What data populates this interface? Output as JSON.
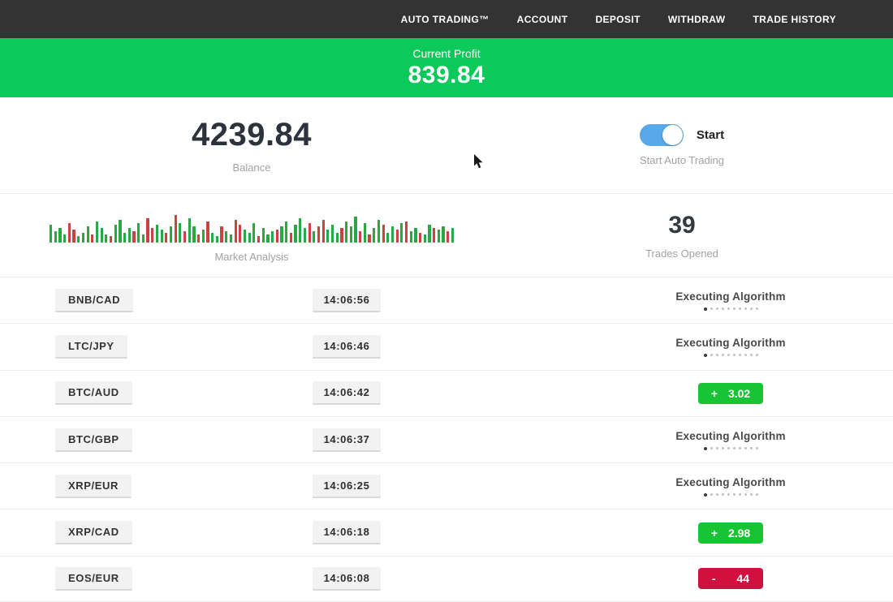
{
  "nav": {
    "items": [
      {
        "label": "AUTO TRADING™"
      },
      {
        "label": "ACCOUNT"
      },
      {
        "label": "DEPOSIT"
      },
      {
        "label": "WITHDRAW"
      },
      {
        "label": "TRADE HISTORY"
      }
    ]
  },
  "profit_banner": {
    "label": "Current Profit",
    "value": "839.84",
    "bg_color": "#0cc95c"
  },
  "stats": {
    "balance": {
      "value": "4239.84",
      "label": "Balance"
    },
    "auto_trading": {
      "toggle_label": "Start",
      "caption": "Start Auto Trading",
      "toggle_on": true,
      "toggle_color": "#57a9e8"
    },
    "market_analysis": {
      "label": "Market Analysis",
      "bar_colors": {
        "up": "#27a843",
        "down": "#cc4141"
      },
      "bars": [
        "g22",
        "g14",
        "g18",
        "g10",
        "r24",
        "r16",
        "g8",
        "g12",
        "g20",
        "r10",
        "g26",
        "g18",
        "g10",
        "r8",
        "g22",
        "g28",
        "g12",
        "g18",
        "r14",
        "g24",
        "g10",
        "r30",
        "r18",
        "g22",
        "g16",
        "r12",
        "g20",
        "r34",
        "g24",
        "r14",
        "g30",
        "g20",
        "r10",
        "g16",
        "r26",
        "g12",
        "g8",
        "r20",
        "g14",
        "g10",
        "r28",
        "r22",
        "g16",
        "g12",
        "g24",
        "r8",
        "g18",
        "g10",
        "g14",
        "r16",
        "g20",
        "g26",
        "r12",
        "g22",
        "g30",
        "g18",
        "r24",
        "g14",
        "r20",
        "r28",
        "g16",
        "g22",
        "g12",
        "r18",
        "g26",
        "g20",
        "g32",
        "r14",
        "g24",
        "r10",
        "g18",
        "g28",
        "r22",
        "g12",
        "g20",
        "r16",
        "g24",
        "r26",
        "g14",
        "g18",
        "r12",
        "g10",
        "g22",
        "r18",
        "g16",
        "g20",
        "r14",
        "g18"
      ]
    },
    "trades_opened": {
      "value": "39",
      "label": "Trades Opened"
    }
  },
  "trades": {
    "executing_label": "Executing Algorithm",
    "status_colors": {
      "profit": "#18c434",
      "loss": "#d0103f"
    },
    "rows": [
      {
        "pair": "BNB/CAD",
        "time": "14:06:56",
        "status": "executing"
      },
      {
        "pair": "LTC/JPY",
        "time": "14:06:46",
        "status": "executing"
      },
      {
        "pair": "BTC/AUD",
        "time": "14:06:42",
        "status": "profit",
        "sign": "+",
        "amount": "3.02"
      },
      {
        "pair": "BTC/GBP",
        "time": "14:06:37",
        "status": "executing"
      },
      {
        "pair": "XRP/EUR",
        "time": "14:06:25",
        "status": "executing"
      },
      {
        "pair": "XRP/CAD",
        "time": "14:06:18",
        "status": "profit",
        "sign": "+",
        "amount": "2.98"
      },
      {
        "pair": "EOS/EUR",
        "time": "14:06:08",
        "status": "loss",
        "sign": "-",
        "amount": "44"
      }
    ]
  }
}
